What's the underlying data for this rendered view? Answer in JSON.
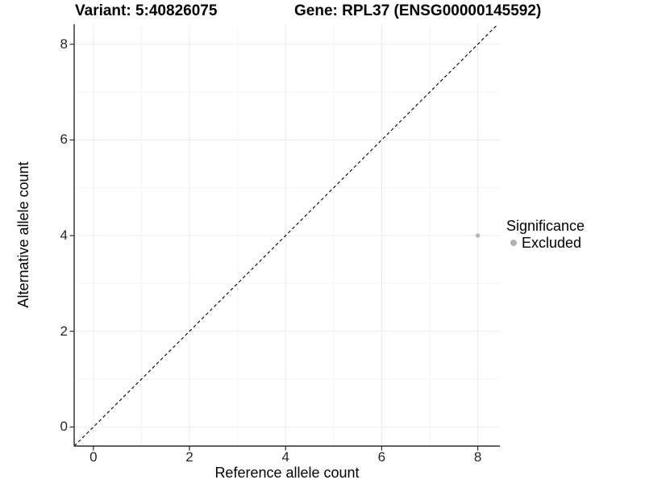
{
  "chart_data": {
    "type": "scatter",
    "titles": [
      "Variant: 5:40826075",
      "Gene: RPL37 (ENSG00000145592)"
    ],
    "xlabel": "Reference allele count",
    "ylabel": "Alternative allele count",
    "xlim": [
      -0.4,
      8.46
    ],
    "ylim": [
      -0.4,
      8.42
    ],
    "x_ticks": [
      0,
      2,
      4,
      6,
      8
    ],
    "y_ticks": [
      0,
      2,
      4,
      6,
      8
    ],
    "x_minor_ticks": [
      1,
      3,
      5,
      7
    ],
    "y_minor_ticks": [
      1,
      3,
      5,
      7
    ],
    "grid": "major+minor",
    "reference_line": {
      "name": "identity",
      "slope": 1,
      "intercept": 0,
      "linetype": "dashed",
      "color": "#000000"
    },
    "series": [
      {
        "name": "Excluded",
        "marker": "circle",
        "color": "#b8b8b8",
        "points": [
          {
            "x": 8,
            "y": 4
          }
        ]
      }
    ],
    "legend": {
      "title": "Significance",
      "position": "right",
      "items": [
        {
          "label": "Excluded",
          "color": "#b0b0b0"
        }
      ]
    },
    "colors": {
      "background": "#ffffff",
      "grid_major": "#ebebeb",
      "grid_minor": "#f5f5f5",
      "axis_line": "#2b2b2b",
      "tick_text": "#262626"
    }
  }
}
